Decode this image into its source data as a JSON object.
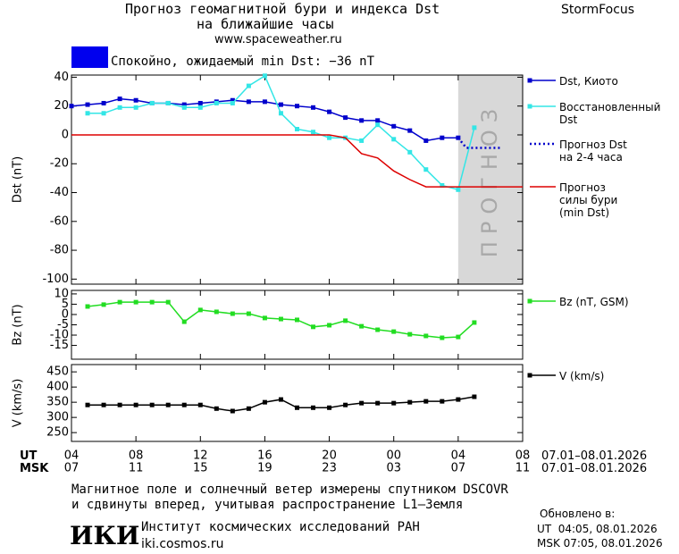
{
  "header": {
    "title_line1": "Прогноз геомагнитной бури и индекса Dst",
    "title_line2": "на ближайшие часы",
    "url": "www.spaceweather.ru",
    "brand": "StormFocus"
  },
  "status": {
    "text": "Спокойно, ожидаемый min Dst: −36 nT",
    "color": "#0000ee"
  },
  "chart_data": [
    {
      "type": "line",
      "y_label": "Dst (nT)",
      "xlim": [
        0,
        28
      ],
      "ylim": [
        -103.5,
        41.5
      ],
      "yticks": [
        40,
        20,
        0,
        -20,
        -40,
        -60,
        -80,
        -100
      ],
      "forecast_region": [
        24,
        28
      ],
      "forecast_label": "ПРОГНОЗ",
      "series": [
        {
          "name": "Dst, Киото",
          "color": "#0000cc",
          "markers": true,
          "style": "solid",
          "x": [
            0,
            1,
            2,
            3,
            4,
            5,
            6,
            7,
            8,
            9,
            10,
            11,
            12,
            13,
            14,
            15,
            16,
            17,
            18,
            19,
            20,
            21,
            22,
            23,
            24
          ],
          "values": [
            20,
            21,
            22,
            25,
            24,
            22,
            22,
            21,
            22,
            23,
            24,
            23,
            23,
            21,
            20,
            19,
            16,
            12,
            10,
            10,
            6,
            3,
            -4,
            -2,
            -2
          ]
        },
        {
          "name": "Восстановленный\nDst",
          "color": "#33e6e6",
          "markers": true,
          "style": "solid",
          "x": [
            1,
            2,
            3,
            4,
            5,
            6,
            7,
            8,
            9,
            10,
            11,
            12,
            13,
            14,
            15,
            16,
            17,
            18,
            19,
            20,
            21,
            22,
            23,
            24,
            25
          ],
          "values": [
            15,
            15,
            19,
            19,
            22,
            22,
            19,
            19,
            22,
            22,
            34,
            41,
            15,
            4,
            2,
            -2,
            -2,
            -4,
            7,
            -3,
            -12,
            -24,
            -35,
            -38,
            5
          ]
        },
        {
          "name": "Прогноз Dst\nна 2-4 часа",
          "color": "#0000cc",
          "markers": false,
          "style": "dotted",
          "x": [
            24,
            24.5,
            26.7
          ],
          "values": [
            -2,
            -9,
            -9
          ]
        },
        {
          "name": "Прогноз\nсилы бури\n(min Dst)",
          "color": "#dd0000",
          "markers": false,
          "style": "solid",
          "x": [
            0,
            16,
            17,
            18,
            19,
            20,
            21,
            22,
            28
          ],
          "values": [
            0,
            0,
            -2,
            -13,
            -16,
            -25,
            -31,
            -36,
            -36
          ]
        }
      ]
    },
    {
      "type": "line",
      "y_label": "Bz (nT)",
      "xlim": [
        0,
        28
      ],
      "ylim": [
        -21.7,
        11.7
      ],
      "yticks": [
        10,
        5,
        0,
        -5,
        -10,
        -15
      ],
      "series": [
        {
          "name": "Bz (nT, GSM)",
          "color": "#22dd22",
          "markers": true,
          "style": "solid",
          "x": [
            1,
            2,
            3,
            4,
            5,
            6,
            7,
            8,
            9,
            10,
            11,
            12,
            13,
            14,
            15,
            16,
            17,
            18,
            19,
            20,
            21,
            22,
            23,
            24,
            25
          ],
          "values": [
            3.9,
            4.8,
            6,
            6,
            6,
            6,
            -3.5,
            2.2,
            1.3,
            0.4,
            0.4,
            -1.7,
            -2.2,
            -2.6,
            -6,
            -5.2,
            -3,
            -5.7,
            -7.4,
            -8.3,
            -9.6,
            -10.4,
            -11.3,
            -10.9,
            -3.9
          ]
        }
      ]
    },
    {
      "type": "line",
      "y_label": "V (km/s)",
      "xlim": [
        0,
        28
      ],
      "ylim": [
        221,
        474
      ],
      "yticks": [
        450,
        400,
        350,
        300,
        250
      ],
      "xticks": [
        {
          "value": 0,
          "label": "04"
        },
        {
          "value": 4,
          "label": "08"
        },
        {
          "value": 8,
          "label": "12"
        },
        {
          "value": 12,
          "label": "16"
        },
        {
          "value": 16,
          "label": "20"
        },
        {
          "value": 20,
          "label": "00"
        },
        {
          "value": 24,
          "label": "04"
        },
        {
          "value": 28,
          "label": "08"
        }
      ],
      "msk_ticks": [
        {
          "value": 0,
          "label": "07"
        },
        {
          "value": 4,
          "label": "11"
        },
        {
          "value": 8,
          "label": "15"
        },
        {
          "value": 12,
          "label": "19"
        },
        {
          "value": 16,
          "label": "23"
        },
        {
          "value": 20,
          "label": "03"
        },
        {
          "value": 24,
          "label": "07"
        },
        {
          "value": 28,
          "label": "11"
        }
      ],
      "series": [
        {
          "name": "V (km/s)",
          "color": "#000000",
          "markers": true,
          "style": "solid",
          "x": [
            1,
            2,
            3,
            4,
            5,
            6,
            7,
            8,
            9,
            10,
            11,
            12,
            13,
            14,
            15,
            16,
            17,
            18,
            19,
            20,
            21,
            22,
            23,
            24,
            25
          ],
          "values": [
            341,
            341,
            341,
            341,
            341,
            341,
            341,
            341,
            329,
            321,
            329,
            350,
            359,
            332,
            332,
            332,
            341,
            347,
            347,
            347,
            350,
            353,
            353,
            359,
            368
          ]
        }
      ]
    }
  ],
  "time_axis": {
    "ut_label": "UT",
    "msk_label": "MSK",
    "ut_range": "07.01–08.01.2026",
    "msk_range": "07.01–08.01.2026"
  },
  "footer": {
    "note_line1": "Магнитное поле и солнечный ветер измерены спутником DSCOVR",
    "note_line2": "и сдвинуты вперед, учитывая распространение L1–Земля",
    "logo": "ИКИ",
    "institute": "Институт космических исследований РАН",
    "site": "iki.cosmos.ru",
    "updated_label": "Обновлено в:",
    "updated_ut": "UT  04:05, 08.01.2026",
    "updated_msk": "MSK 07:05, 08.01.2026"
  }
}
